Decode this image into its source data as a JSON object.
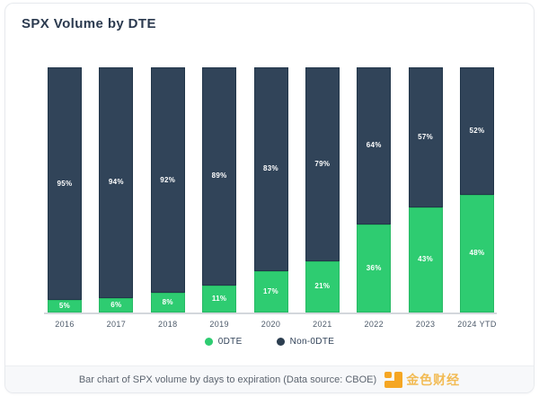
{
  "header": {
    "title": "SPX Volume by DTE"
  },
  "colors": {
    "odte_green": "#2ecc71",
    "odte_green_border": "#27b964",
    "non_odte_navy": "#314459",
    "non_odte_navy_border": "#22364a",
    "legend_navy_dot": "#2c3e50",
    "axis_line": "#d3d7dc",
    "title_text": "#2b3a4f",
    "tick_text": "#4d5a6a",
    "footer_bg": "#f7f8fa",
    "footer_text": "#5d6570",
    "brand_gold": "#f5a623"
  },
  "chart_data": {
    "type": "bar",
    "stacked": true,
    "stacked_total": 100,
    "title": "SPX Volume by DTE",
    "xlabel": "",
    "ylabel": "",
    "ylim": [
      0,
      100
    ],
    "grid": false,
    "legend_position": "bottom",
    "value_labels": "percent shown inside each segment",
    "categories": [
      "2016",
      "2017",
      "2018",
      "2019",
      "2020",
      "2021",
      "2022",
      "2023",
      "2024 YTD"
    ],
    "stack_order_bottom_to_top": [
      "0DTE",
      "Non-0DTE"
    ],
    "series": [
      {
        "name": "0DTE",
        "color": "#2ecc71",
        "values": [
          5,
          6,
          8,
          11,
          17,
          21,
          36,
          43,
          48
        ]
      },
      {
        "name": "Non-0DTE",
        "color": "#314459",
        "values": [
          95,
          94,
          92,
          89,
          83,
          79,
          64,
          57,
          52
        ]
      }
    ]
  },
  "legend": {
    "items": [
      {
        "label": "0DTE",
        "color": "#2ecc71"
      },
      {
        "label": "Non-0DTE",
        "color": "#2c3e50"
      }
    ]
  },
  "footer": {
    "caption": "Bar chart of SPX volume by days to expiration (Data source: CBOE)",
    "brand": "金色财经"
  }
}
